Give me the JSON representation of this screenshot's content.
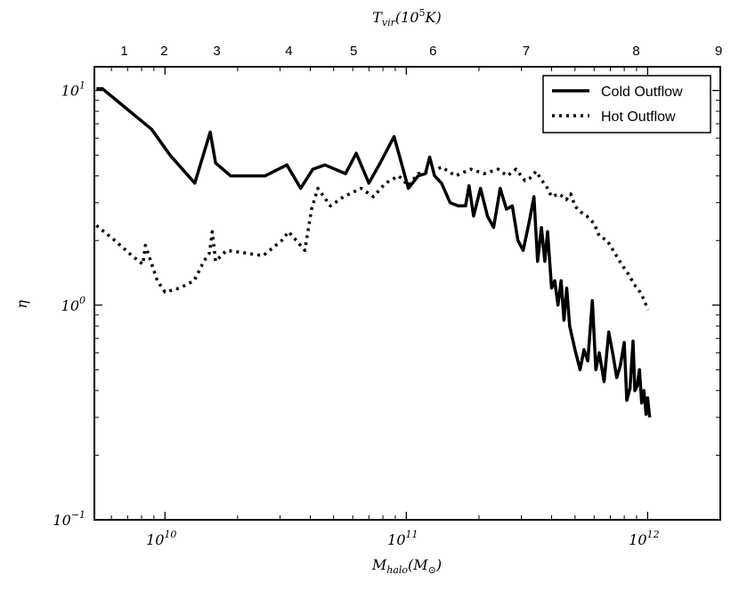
{
  "chart_data": {
    "type": "line",
    "title": "",
    "xlabel": "M_halo(M_⊙)",
    "ylabel": "η",
    "top_xlabel": "T_vir(10^5 K)",
    "xscale": "log",
    "yscale": "log",
    "xlim": [
      5100000000.0,
      2000000000000.0
    ],
    "ylim": [
      0.1,
      12.9
    ],
    "x_ticks": [
      {
        "value": 10000000000.0,
        "base": "10",
        "exp": "10"
      },
      {
        "value": 100000000000.0,
        "base": "10",
        "exp": "11"
      },
      {
        "value": 1000000000000.0,
        "base": "10",
        "exp": "12"
      }
    ],
    "y_ticks": [
      {
        "value": 10,
        "base": "10",
        "exp": "1"
      },
      {
        "value": 1,
        "base": "10",
        "exp": "0"
      },
      {
        "value": 0.1,
        "base": "10",
        "exp": "−1"
      }
    ],
    "top_ticks": [
      {
        "label": "1",
        "x": 6780000000.0
      },
      {
        "label": "2",
        "x": 9930000000.0
      },
      {
        "label": "3",
        "x": 16400000000.0
      },
      {
        "label": "4",
        "x": 32600000000.0
      },
      {
        "label": "5",
        "x": 60500000000.0
      },
      {
        "label": "6",
        "x": 129000000000.0
      },
      {
        "label": "7",
        "x": 314000000000.0
      },
      {
        "label": "8",
        "x": 897000000000.0
      },
      {
        "label": "9",
        "x": 1970000000000.0
      }
    ],
    "legend": {
      "placement": "top-right"
    },
    "series": [
      {
        "name": "Cold Outflow",
        "style": "solid",
        "points": [
          [
            5200000000.0,
            10.2
          ],
          [
            5500000000.0,
            10.2
          ],
          [
            8800000000.0,
            6.6
          ],
          [
            10500000000.0,
            5.0
          ],
          [
            13300000000.0,
            3.7
          ],
          [
            15400000000.0,
            6.4
          ],
          [
            16200000000.0,
            4.6
          ],
          [
            18700000000.0,
            4.0
          ],
          [
            21800000000.0,
            4.0
          ],
          [
            26000000000.0,
            4.0
          ],
          [
            32000000000.0,
            4.5
          ],
          [
            36500000000.0,
            3.5
          ],
          [
            41000000000.0,
            4.3
          ],
          [
            46000000000.0,
            4.5
          ],
          [
            56000000000.0,
            4.1
          ],
          [
            62000000000.0,
            5.1
          ],
          [
            70000000000.0,
            3.7
          ],
          [
            78000000000.0,
            4.6
          ],
          [
            89000000000.0,
            6.1
          ],
          [
            102000000000.0,
            3.5
          ],
          [
            112000000000.0,
            4.0
          ],
          [
            120000000000.0,
            4.1
          ],
          [
            125000000000.0,
            4.9
          ],
          [
            131000000000.0,
            4.0
          ],
          [
            140000000000.0,
            3.7
          ],
          [
            152000000000.0,
            3.0
          ],
          [
            164000000000.0,
            2.9
          ],
          [
            176000000000.0,
            2.9
          ],
          [
            182000000000.0,
            3.6
          ],
          [
            190000000000.0,
            2.6
          ],
          [
            203000000000.0,
            3.5
          ],
          [
            217000000000.0,
            2.6
          ],
          [
            230000000000.0,
            2.3
          ],
          [
            245000000000.0,
            3.5
          ],
          [
            260000000000.0,
            2.8
          ],
          [
            275000000000.0,
            2.9
          ],
          [
            290000000000.0,
            2.0
          ],
          [
            305000000000.0,
            1.8
          ],
          [
            322000000000.0,
            2.4
          ],
          [
            338000000000.0,
            3.2
          ],
          [
            350000000000.0,
            1.6
          ],
          [
            363000000000.0,
            2.3
          ],
          [
            375000000000.0,
            1.6
          ],
          [
            385000000000.0,
            2.2
          ],
          [
            400000000000.0,
            1.2
          ],
          [
            412000000000.0,
            1.3
          ],
          [
            425000000000.0,
            1.0
          ],
          [
            438000000000.0,
            1.3
          ],
          [
            450000000000.0,
            0.85
          ],
          [
            462000000000.0,
            1.2
          ],
          [
            475000000000.0,
            0.8
          ],
          [
            500000000000.0,
            0.62
          ],
          [
            525000000000.0,
            0.5
          ],
          [
            545000000000.0,
            0.62
          ],
          [
            565000000000.0,
            0.55
          ],
          [
            590000000000.0,
            1.05
          ],
          [
            610000000000.0,
            0.5
          ],
          [
            630000000000.0,
            0.6
          ],
          [
            660000000000.0,
            0.44
          ],
          [
            690000000000.0,
            0.75
          ],
          [
            720000000000.0,
            0.58
          ],
          [
            745000000000.0,
            0.46
          ],
          [
            770000000000.0,
            0.52
          ],
          [
            800000000000.0,
            0.67
          ],
          [
            820000000000.0,
            0.36
          ],
          [
            845000000000.0,
            0.41
          ],
          [
            870000000000.0,
            0.68
          ],
          [
            885000000000.0,
            0.4
          ],
          [
            905000000000.0,
            0.42
          ],
          [
            925000000000.0,
            0.5
          ],
          [
            945000000000.0,
            0.35
          ],
          [
            965000000000.0,
            0.4
          ],
          [
            985000000000.0,
            0.31
          ],
          [
            1000000000000.0,
            0.37
          ],
          [
            1020000000000.0,
            0.3
          ]
        ]
      },
      {
        "name": "Hot Outflow",
        "style": "dotted",
        "points": [
          [
            5200000000.0,
            2.35
          ],
          [
            6200000000.0,
            2.0
          ],
          [
            7300000000.0,
            1.7
          ],
          [
            8100000000.0,
            1.55
          ],
          [
            8300000000.0,
            1.9
          ],
          [
            8700000000.0,
            1.62
          ],
          [
            9300000000.0,
            1.3
          ],
          [
            10000000000.0,
            1.15
          ],
          [
            11500000000.0,
            1.2
          ],
          [
            13200000000.0,
            1.3
          ],
          [
            14500000000.0,
            1.6
          ],
          [
            15300000000.0,
            1.75
          ],
          [
            15700000000.0,
            2.2
          ],
          [
            16200000000.0,
            1.6
          ],
          [
            18000000000.0,
            1.8
          ],
          [
            21500000000.0,
            1.75
          ],
          [
            25500000000.0,
            1.7
          ],
          [
            30500000000.0,
            2.0
          ],
          [
            32500000000.0,
            2.2
          ],
          [
            35000000000.0,
            2.0
          ],
          [
            38000000000.0,
            1.8
          ],
          [
            40500000000.0,
            2.8
          ],
          [
            43000000000.0,
            3.5
          ],
          [
            48500000000.0,
            2.9
          ],
          [
            55000000000.0,
            3.2
          ],
          [
            65000000000.0,
            3.5
          ],
          [
            73000000000.0,
            3.2
          ],
          [
            82000000000.0,
            3.7
          ],
          [
            93000000000.0,
            4.0
          ],
          [
            102000000000.0,
            3.6
          ],
          [
            112000000000.0,
            4.1
          ],
          [
            128000000000.0,
            4.2
          ],
          [
            140000000000.0,
            4.4
          ],
          [
            160000000000.0,
            4.0
          ],
          [
            185000000000.0,
            4.3
          ],
          [
            210000000000.0,
            4.1
          ],
          [
            240000000000.0,
            4.3
          ],
          [
            262000000000.0,
            4.0
          ],
          [
            285000000000.0,
            4.3
          ],
          [
            310000000000.0,
            3.8
          ],
          [
            325000000000.0,
            3.9
          ],
          [
            345000000000.0,
            4.2
          ],
          [
            365000000000.0,
            3.8
          ],
          [
            385000000000.0,
            3.5
          ],
          [
            400000000000.0,
            3.2
          ],
          [
            430000000000.0,
            3.3
          ],
          [
            460000000000.0,
            3.1
          ],
          [
            480000000000.0,
            3.3
          ],
          [
            500000000000.0,
            2.9
          ],
          [
            520000000000.0,
            2.75
          ],
          [
            560000000000.0,
            2.6
          ],
          [
            600000000000.0,
            2.4
          ],
          [
            630000000000.0,
            2.1
          ],
          [
            680000000000.0,
            2.0
          ],
          [
            730000000000.0,
            1.75
          ],
          [
            780000000000.0,
            1.55
          ],
          [
            830000000000.0,
            1.4
          ],
          [
            880000000000.0,
            1.25
          ],
          [
            930000000000.0,
            1.15
          ],
          [
            970000000000.0,
            1.05
          ],
          [
            1000000000000.0,
            0.95
          ]
        ]
      }
    ]
  }
}
